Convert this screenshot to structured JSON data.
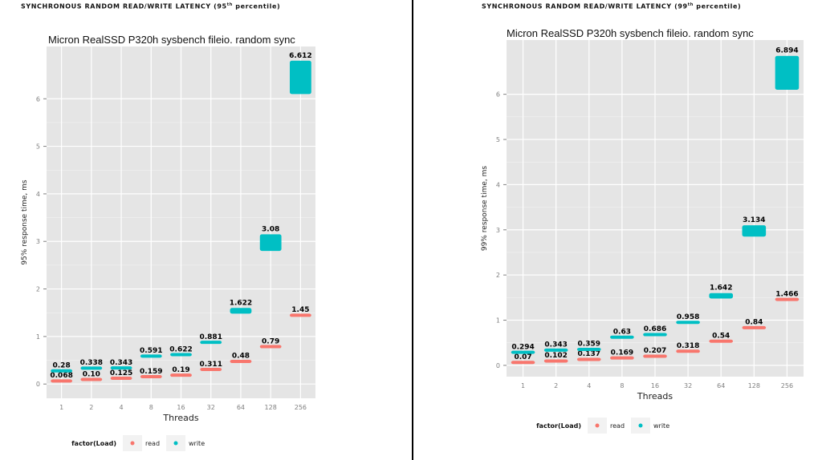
{
  "headers": [
    {
      "text": "SYNCHRONOUS RANDOM READ/WRITE LATENCY (95",
      "sup": "th",
      "tail": " percentile)"
    },
    {
      "text": "SYNCHRONOUS RANDOM READ/WRITE LATENCY (99",
      "sup": "th",
      "tail": " percentile)"
    }
  ],
  "chart_data": [
    {
      "type": "scatter",
      "title": "Micron RealSSD P320h  sysbench fileio. random sync",
      "xlabel": "Threads",
      "ylabel": "95% response time, ms",
      "categories": [
        "1",
        "2",
        "4",
        "8",
        "16",
        "32",
        "64",
        "128",
        "256"
      ],
      "ylim": [
        -0.3,
        7.1
      ],
      "yticks": [
        0,
        1,
        2,
        3,
        4,
        5,
        6
      ],
      "grid": true,
      "legend": {
        "title": "factor(Load)",
        "position": "bottom"
      },
      "series": [
        {
          "name": "read",
          "color": "#F8766D",
          "values": [
            0.068,
            0.1,
            0.125,
            0.159,
            0.19,
            0.311,
            0.48,
            0.79,
            1.45
          ],
          "labels": [
            "0.068",
            "0.10",
            "0.125",
            "0.159",
            "0.19",
            "0.311",
            "0.48",
            "0.79",
            "1.45"
          ]
        },
        {
          "name": "write",
          "color": "#00BFC4",
          "values": [
            0.28,
            0.338,
            0.343,
            0.591,
            0.622,
            0.881,
            1.622,
            3.08,
            6.612
          ],
          "labels": [
            "0.28",
            "0.338",
            "0.343",
            "0.591",
            "0.622",
            "0.881",
            "1.622",
            "3.08",
            "6.612"
          ],
          "ranges": [
            null,
            null,
            null,
            null,
            null,
            null,
            [
              1.48,
              1.6
            ],
            [
              2.8,
              3.15
            ],
            [
              6.1,
              6.8
            ]
          ]
        }
      ]
    },
    {
      "type": "scatter",
      "title": "Micron RealSSD P320h  sysbench fileio. random sync",
      "xlabel": "Threads",
      "ylabel": "99% response time, ms",
      "categories": [
        "1",
        "2",
        "4",
        "8",
        "16",
        "32",
        "64",
        "128",
        "256"
      ],
      "ylim": [
        -0.25,
        7.2
      ],
      "yticks": [
        0,
        1,
        2,
        3,
        4,
        5,
        6
      ],
      "grid": true,
      "legend": {
        "title": "factor(Load)",
        "position": "bottom"
      },
      "series": [
        {
          "name": "read",
          "color": "#F8766D",
          "values": [
            0.07,
            0.102,
            0.137,
            0.169,
            0.207,
            0.318,
            0.54,
            0.84,
            1.466
          ],
          "labels": [
            "0.07",
            "0.102",
            "0.137",
            "0.169",
            "0.207",
            "0.318",
            "0.54",
            "0.84",
            "1.466"
          ]
        },
        {
          "name": "write",
          "color": "#00BFC4",
          "values": [
            0.294,
            0.343,
            0.359,
            0.63,
            0.686,
            0.958,
            1.642,
            3.134,
            6.894
          ],
          "labels": [
            "0.294",
            "0.343",
            "0.359",
            "0.63",
            "0.686",
            "0.958",
            "1.642",
            "3.134",
            "6.894"
          ],
          "ranges": [
            null,
            null,
            null,
            null,
            null,
            null,
            [
              1.48,
              1.6
            ],
            [
              2.85,
              3.1
            ],
            [
              6.1,
              6.85
            ]
          ]
        }
      ]
    }
  ]
}
